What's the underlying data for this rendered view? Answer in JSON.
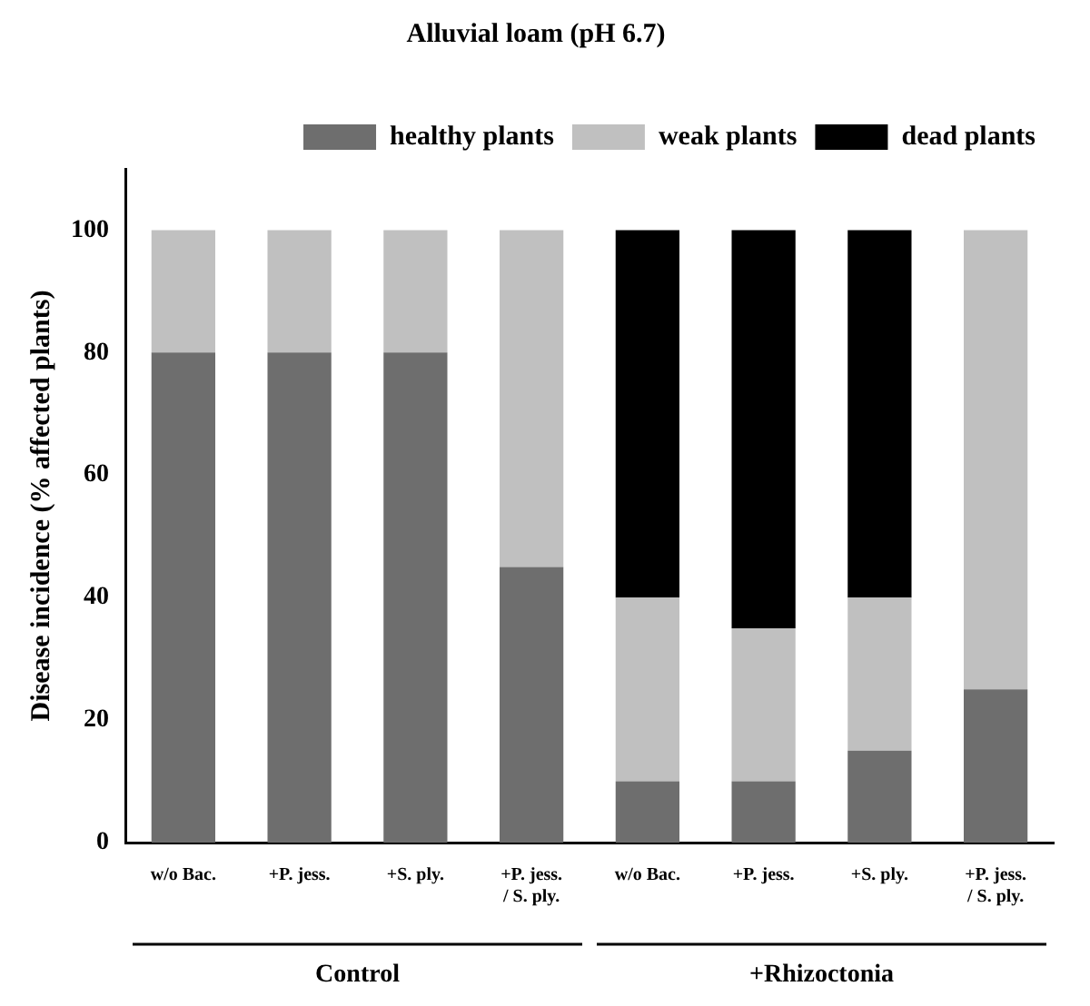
{
  "chart_data": {
    "type": "bar",
    "title": "Alluvial loam (pH 6.7)",
    "ylabel": "Disease incidence (% affected plants)",
    "categories": [
      "w/o Bac.",
      "+P. jess.",
      "+S. ply.",
      "+P. jess. / S. ply.",
      "w/o Bac.",
      "+P. jess.",
      "+S. ply.",
      "+P. jess. / S. ply."
    ],
    "series": [
      {
        "name": "healthy plants",
        "color": "#6e6e6e",
        "values": [
          80,
          80,
          80,
          45,
          10,
          10,
          15,
          25
        ]
      },
      {
        "name": "weak plants",
        "color": "#c0c0c0",
        "values": [
          20,
          20,
          20,
          55,
          30,
          25,
          25,
          75
        ]
      },
      {
        "name": "dead plants",
        "color": "#000000",
        "values": [
          0,
          0,
          0,
          0,
          60,
          65,
          60,
          0
        ]
      }
    ],
    "stacked": true,
    "ylim": [
      0,
      110
    ],
    "yticks": [
      0,
      20,
      40,
      60,
      80,
      100
    ],
    "grid": false,
    "legend": "top",
    "annotations": [
      "Control",
      "+Rhizoctonia"
    ]
  }
}
